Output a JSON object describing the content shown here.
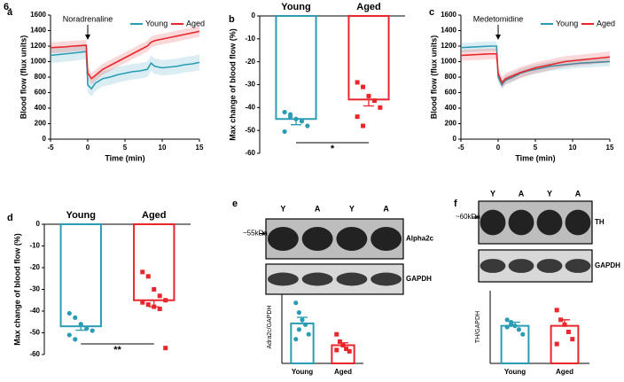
{
  "figure_label": "6.",
  "chart_data": [
    {
      "type": "line",
      "label": "a",
      "ylabel": "Blood flow (flux units)",
      "xlabel": "Time (min)",
      "annotation": "Noradrenaline",
      "annotation_x": 0,
      "xlim": [
        -5,
        15
      ],
      "xticks": [
        -5,
        0,
        5,
        10,
        15
      ],
      "ylim": [
        0,
        1600
      ],
      "yticks": [
        0,
        200,
        400,
        600,
        800,
        1000,
        1200,
        1400,
        1600
      ],
      "legend": "top-right",
      "x": [
        -5,
        -4,
        -3,
        -2,
        -1,
        -0.2,
        0,
        0.5,
        1,
        2,
        3,
        4,
        5,
        6,
        7,
        8,
        8.5,
        9,
        10,
        11,
        12,
        13,
        14,
        15
      ],
      "series": [
        {
          "name": "Young",
          "color": "#2a9db5",
          "values": [
            1080,
            1090,
            1100,
            1110,
            1120,
            1130,
            700,
            650,
            720,
            780,
            800,
            830,
            850,
            870,
            880,
            900,
            980,
            940,
            920,
            930,
            940,
            960,
            970,
            990
          ],
          "error": 100
        },
        {
          "name": "Aged",
          "color": "#e8262b",
          "values": [
            1180,
            1185,
            1190,
            1200,
            1205,
            1210,
            850,
            780,
            820,
            900,
            950,
            1000,
            1050,
            1100,
            1150,
            1200,
            1250,
            1270,
            1290,
            1310,
            1330,
            1350,
            1370,
            1390
          ],
          "error": 70
        }
      ]
    },
    {
      "type": "barpoints",
      "label": "b",
      "ylabel": "Max change of blood flow (%)",
      "category_labels": "top",
      "annotation": "*",
      "ylim": [
        -60,
        0
      ],
      "yticks": [
        -60,
        -50,
        -40,
        -30,
        -20,
        -10,
        0
      ],
      "categories": [
        "Young",
        "Aged"
      ],
      "colors": [
        "#2a9db5",
        "#e8262b"
      ],
      "values": [
        -45,
        -36.5
      ],
      "errors": [
        2.5,
        2.8
      ],
      "points": [
        [
          -42,
          -43,
          -45,
          -46,
          -48,
          -50.5,
          -44
        ],
        [
          -29,
          -31,
          -35,
          -37,
          -40,
          -44,
          -48
        ]
      ]
    },
    {
      "type": "line",
      "label": "c",
      "ylabel": "Blood flow (flux units)",
      "xlabel": "Time (min)",
      "annotation": "Medetomidine",
      "annotation_x": 0,
      "xlim": [
        -5,
        15
      ],
      "xticks": [
        -5,
        0,
        5,
        10,
        15
      ],
      "ylim": [
        0,
        1600
      ],
      "yticks": [
        0,
        200,
        400,
        600,
        800,
        1000,
        1200,
        1400,
        1600
      ],
      "legend": "top-right",
      "x": [
        -5,
        -4,
        -3,
        -2,
        -1,
        -0.2,
        0,
        0.5,
        1,
        2,
        3,
        4,
        5,
        6,
        7,
        8,
        8.5,
        9,
        10,
        11,
        12,
        13,
        14,
        15
      ],
      "series": [
        {
          "name": "Young",
          "color": "#2a9db5",
          "values": [
            1180,
            1185,
            1190,
            1195,
            1200,
            1200,
            800,
            700,
            760,
            800,
            850,
            880,
            900,
            920,
            940,
            950,
            955,
            960,
            970,
            980,
            985,
            990,
            995,
            1000
          ],
          "error": 60
        },
        {
          "name": "Aged",
          "color": "#e8262b",
          "values": [
            1080,
            1085,
            1090,
            1095,
            1100,
            1100,
            850,
            730,
            780,
            820,
            860,
            890,
            920,
            940,
            960,
            980,
            990,
            1000,
            1010,
            1020,
            1030,
            1040,
            1050,
            1060
          ],
          "error": 70
        }
      ]
    },
    {
      "type": "barpoints",
      "label": "d",
      "ylabel": "Max change of blood flow (%)",
      "category_labels": "top",
      "annotation": "**",
      "ylim": [
        -60,
        0
      ],
      "yticks": [
        -60,
        -50,
        -40,
        -30,
        -20,
        -10,
        0
      ],
      "categories": [
        "Young",
        "Aged"
      ],
      "colors": [
        "#2a9db5",
        "#e8262b"
      ],
      "values": [
        -47,
        -35
      ],
      "errors": [
        1.8,
        3
      ],
      "points": [
        [
          -41,
          -43,
          -46,
          -48,
          -49,
          -51,
          -53
        ],
        [
          -22,
          -24,
          -30,
          -33,
          -35,
          -36,
          -37,
          -38,
          -39,
          -57
        ]
      ]
    },
    {
      "type": "blotbar",
      "label": "e",
      "ylabel": "Adra2c/GAPDH",
      "category_labels": "bottom",
      "annotation": "**",
      "lanes": [
        "Y",
        "A",
        "Y",
        "A"
      ],
      "size": "~55kDa",
      "rows": [
        "Alpha2c",
        "GAPDH"
      ],
      "ylim": [
        0,
        3
      ],
      "categories": [
        "Young",
        "Aged"
      ],
      "colors": [
        "#2a9db5",
        "#e8262b"
      ],
      "values": [
        1.65,
        0.75
      ],
      "errors": [
        0.25,
        0.1
      ],
      "points": [
        [
          2.5,
          2.1,
          1.8,
          1.6,
          1.2,
          1.0,
          1.4
        ],
        [
          1.2,
          0.9,
          0.75,
          0.6,
          0.5,
          0.55
        ]
      ]
    },
    {
      "type": "blotbar",
      "label": "f",
      "ylabel": "TH/GAPDH",
      "category_labels": "bottom",
      "lanes": [
        "Y",
        "A",
        "Y",
        "A"
      ],
      "size": "~60kDa",
      "rows": [
        "TH",
        "GAPDH"
      ],
      "ylim": [
        0,
        3
      ],
      "categories": [
        "Young",
        "Aged"
      ],
      "colors": [
        "#2a9db5",
        "#e8262b"
      ],
      "values": [
        1.55,
        1.55
      ],
      "errors": [
        0.15,
        0.25
      ],
      "points": [
        [
          1.8,
          1.6,
          1.55,
          1.4,
          1.2,
          1.5,
          1.7
        ],
        [
          2.2,
          1.8,
          1.6,
          1.3,
          1.0,
          0.8
        ]
      ]
    }
  ]
}
